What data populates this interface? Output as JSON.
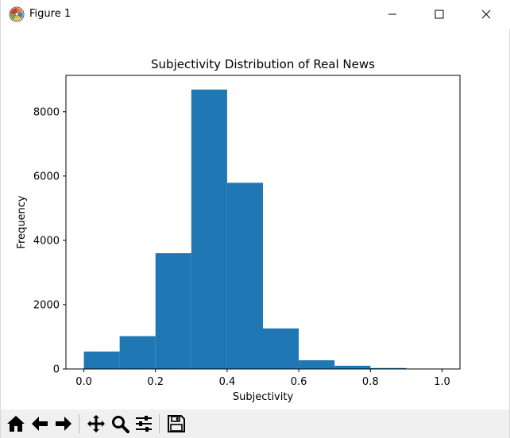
{
  "window": {
    "title": "Figure 1"
  },
  "toolbar": {
    "buttons": [
      {
        "name": "home",
        "icon": "home-icon"
      },
      {
        "name": "back",
        "icon": "arrow-left-icon"
      },
      {
        "name": "forward",
        "icon": "arrow-right-icon"
      },
      {
        "name": "pan",
        "icon": "move-icon"
      },
      {
        "name": "zoom",
        "icon": "magnifier-icon"
      },
      {
        "name": "configure",
        "icon": "sliders-icon"
      },
      {
        "name": "save",
        "icon": "floppy-disk-icon"
      }
    ]
  },
  "chart_data": {
    "type": "bar",
    "title": "Subjectivity Distribution of Real News",
    "xlabel": "Subjectivity",
    "ylabel": "Frequency",
    "xlim": [
      -0.05,
      1.05
    ],
    "ylim": [
      0,
      9130
    ],
    "bin_edges": [
      0.0,
      0.1,
      0.2,
      0.3,
      0.4,
      0.5,
      0.6,
      0.7,
      0.8,
      0.9,
      1.0
    ],
    "values": [
      540,
      1020,
      3600,
      8690,
      5790,
      1260,
      270,
      100,
      30,
      10
    ],
    "xticks": [
      0.0,
      0.2,
      0.4,
      0.6,
      0.8,
      1.0
    ],
    "xtick_labels": [
      "0.0",
      "0.2",
      "0.4",
      "0.6",
      "0.8",
      "1.0"
    ],
    "yticks": [
      0,
      2000,
      4000,
      6000,
      8000
    ],
    "ytick_labels": [
      "0",
      "2000",
      "4000",
      "6000",
      "8000"
    ],
    "bar_color": "#1f77b4",
    "grid": false,
    "legend": "none"
  }
}
